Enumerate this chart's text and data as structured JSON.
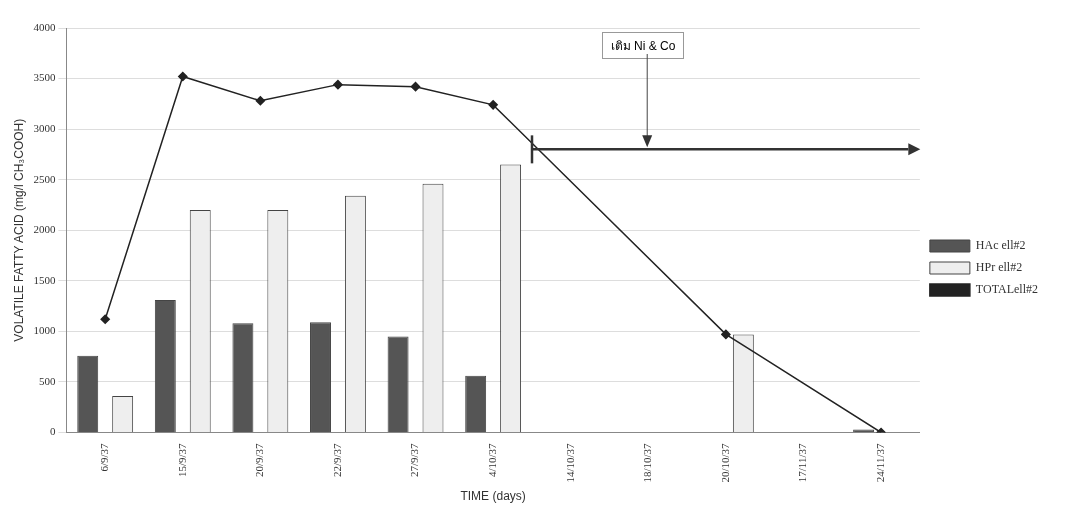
{
  "chart_data": {
    "type": "bar",
    "xlabel": "TIME (days)",
    "ylabel": "VOLATILE FATTY ACID (mg/l CH₃COOH)",
    "categories": [
      "6/9/37",
      "15/9/37",
      "20/9/37",
      "22/9/37",
      "27/9/37",
      "4/10/37",
      "14/10/37",
      "18/10/37",
      "20/10/37",
      "17/11/37",
      "24/11/37"
    ],
    "series": [
      {
        "name": "HAc ell#2",
        "color": "#555555",
        "values": [
          760,
          1310,
          1080,
          1090,
          950,
          560,
          null,
          null,
          null,
          null,
          30
        ]
      },
      {
        "name": "HPr ell#2",
        "color": "#eeeeee",
        "values": [
          360,
          2200,
          2200,
          2340,
          2460,
          2650,
          null,
          null,
          970,
          null,
          null
        ]
      },
      {
        "name": "TOTALell#2",
        "type": "line",
        "color": "#222222",
        "values": [
          1120,
          3520,
          3280,
          3440,
          3420,
          3240,
          null,
          null,
          970,
          null,
          0
        ]
      }
    ],
    "ylim": [
      0,
      4000
    ],
    "yticks": [
      0,
      500,
      1000,
      1500,
      2000,
      2500,
      3000,
      3500,
      4000
    ],
    "grid": "y",
    "legend": "right",
    "marker": "diamond",
    "annotations": [
      "เติม Ni & Co"
    ]
  }
}
